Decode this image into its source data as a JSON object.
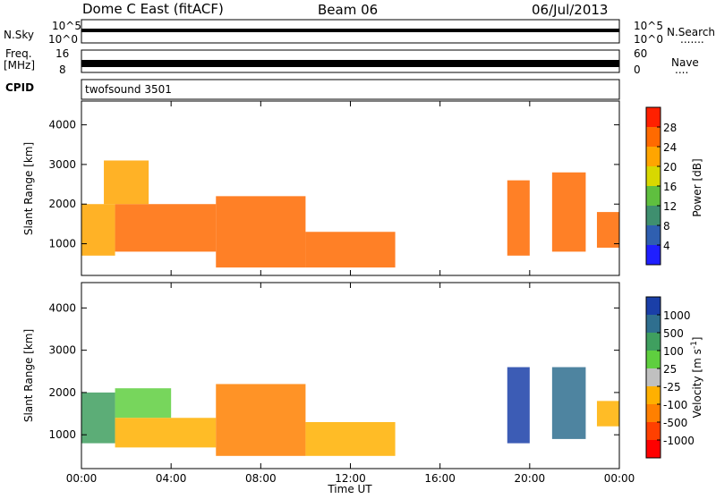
{
  "header": {
    "station": "Dome C East (fitACF)",
    "beam": "Beam 06",
    "date": "06/Jul/2013"
  },
  "strips": {
    "nsky": {
      "label": "N.Sky",
      "tick_top": "10^5",
      "tick_bottom": "10^0"
    },
    "nsearch": {
      "label": "N.Search",
      "tick_top": "10^5",
      "tick_bottom": "10^0"
    },
    "freq": {
      "label_line1": "Freq.",
      "label_line2": "[MHz]",
      "tick_top": "16",
      "tick_bottom": "8"
    },
    "nave": {
      "label": "Nave",
      "tick_top": "60",
      "tick_bottom": "0"
    },
    "cpid": {
      "label": "CPID",
      "value": "twofsound 3501"
    }
  },
  "chart_data": [
    {
      "type": "heatmap",
      "title": "",
      "xlabel": "Time UT",
      "ylabel": "Slant Range [km]",
      "x_ticks": [
        "00:00",
        "04:00",
        "08:00",
        "12:00",
        "16:00",
        "20:00",
        "00:00"
      ],
      "x_range_hours": [
        0,
        24
      ],
      "y_ticks": [
        1000,
        2000,
        3000,
        4000
      ],
      "ylim": [
        200,
        4600
      ],
      "colorbar": {
        "label": "Power [dB]",
        "ticks": [
          "4",
          "8",
          "12",
          "16",
          "20",
          "24",
          "28"
        ],
        "range": [
          0,
          30
        ]
      },
      "echo_regions": [
        {
          "t_start": 0.0,
          "t_end": 1.5,
          "r_min": 700,
          "r_max": 2000,
          "value": 22
        },
        {
          "t_start": 1.5,
          "t_end": 6.0,
          "r_min": 800,
          "r_max": 2000,
          "value": 24
        },
        {
          "t_start": 1.0,
          "t_end": 3.0,
          "r_min": 2000,
          "r_max": 3100,
          "value": 20
        },
        {
          "t_start": 6.0,
          "t_end": 10.0,
          "r_min": 400,
          "r_max": 2200,
          "value": 26
        },
        {
          "t_start": 10.0,
          "t_end": 14.0,
          "r_min": 400,
          "r_max": 1300,
          "value": 26
        },
        {
          "t_start": 19.0,
          "t_end": 20.0,
          "r_min": 700,
          "r_max": 2600,
          "value": 24
        },
        {
          "t_start": 21.0,
          "t_end": 22.5,
          "r_min": 800,
          "r_max": 2800,
          "value": 26
        },
        {
          "t_start": 23.0,
          "t_end": 24.0,
          "r_min": 900,
          "r_max": 1800,
          "value": 24
        }
      ]
    },
    {
      "type": "heatmap",
      "title": "",
      "xlabel": "Time UT",
      "ylabel": "Slant Range [km]",
      "x_ticks": [
        "00:00",
        "04:00",
        "08:00",
        "12:00",
        "16:00",
        "20:00",
        "00:00"
      ],
      "x_range_hours": [
        0,
        24
      ],
      "y_ticks": [
        1000,
        2000,
        3000,
        4000
      ],
      "ylim": [
        200,
        4600
      ],
      "colorbar": {
        "label": "Velocity [m s^-1]",
        "ticks": [
          "1000",
          "500",
          "100",
          "25",
          "-25",
          "-100",
          "-500",
          "-1000"
        ]
      },
      "echo_regions": [
        {
          "t_start": 0.0,
          "t_end": 1.5,
          "r_min": 800,
          "r_max": 2000,
          "value": 100
        },
        {
          "t_start": 1.5,
          "t_end": 4.0,
          "r_min": 1400,
          "r_max": 2100,
          "value": 25
        },
        {
          "t_start": 1.5,
          "t_end": 6.0,
          "r_min": 700,
          "r_max": 1400,
          "value": -100
        },
        {
          "t_start": 6.0,
          "t_end": 10.0,
          "r_min": 500,
          "r_max": 2200,
          "value": -500
        },
        {
          "t_start": 10.0,
          "t_end": 14.0,
          "r_min": 500,
          "r_max": 1300,
          "value": -100
        },
        {
          "t_start": 19.0,
          "t_end": 20.0,
          "r_min": 800,
          "r_max": 2600,
          "value": 1000
        },
        {
          "t_start": 21.0,
          "t_end": 22.5,
          "r_min": 900,
          "r_max": 2600,
          "value": 500
        },
        {
          "t_start": 23.0,
          "t_end": 24.0,
          "r_min": 1200,
          "r_max": 1800,
          "value": -100
        }
      ]
    }
  ],
  "colors": {
    "power": [
      "#1f1fff",
      "#2f5fb0",
      "#3f8f6f",
      "#5fbf3f",
      "#d8d800",
      "#ffa500",
      "#ff6a00",
      "#ff2000"
    ],
    "velocity": [
      "#1a3fa8",
      "#2f6f8f",
      "#3f9f5f",
      "#5fcf3f",
      "#c0c0c0",
      "#ffb000",
      "#ff8000",
      "#ff4000",
      "#ff0000"
    ]
  }
}
